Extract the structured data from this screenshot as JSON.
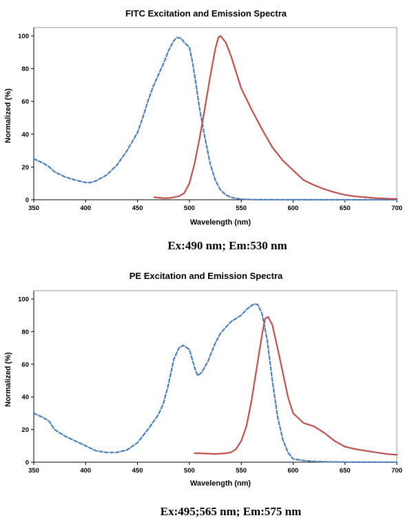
{
  "colors": {
    "excitation": "#4a7ebf",
    "emission": "#c0504d"
  },
  "chart_data": [
    {
      "type": "line",
      "title": "FITC Excitation and Emission Spectra",
      "xlabel": "Wavelength (nm)",
      "ylabel": "Normalized (%)",
      "xlim": [
        350,
        700
      ],
      "ylim": [
        0,
        100
      ],
      "xticks": [
        "350",
        "400",
        "450",
        "500",
        "550",
        "600",
        "650",
        "700"
      ],
      "yticks": [
        "0",
        "20",
        "40",
        "60",
        "80",
        "100"
      ],
      "caption": "Ex:490 nm; Em:530 nm",
      "series": [
        {
          "style": "dashed",
          "color": "#4a7ebf",
          "x": [
            350,
            360,
            365,
            370,
            380,
            390,
            400,
            405,
            410,
            420,
            430,
            440,
            450,
            455,
            460,
            465,
            470,
            475,
            480,
            485,
            488,
            492,
            495,
            500,
            503,
            507,
            510,
            515,
            520,
            525,
            530,
            535,
            540,
            545,
            550,
            560,
            600,
            650,
            700
          ],
          "y": [
            25,
            22,
            20,
            17,
            14,
            12,
            10.5,
            10.5,
            11.5,
            15,
            21,
            30,
            41,
            50,
            60,
            69,
            76,
            83,
            91,
            97,
            99,
            98.5,
            96,
            93,
            84,
            68,
            55,
            38,
            22,
            12,
            6,
            3,
            1.5,
            0.8,
            0.4,
            0.1,
            0,
            0,
            0
          ]
        },
        {
          "style": "solid",
          "color": "#c0504d",
          "x": [
            466,
            475,
            480,
            485,
            490,
            495,
            500,
            505,
            510,
            515,
            520,
            525,
            528,
            530,
            535,
            540,
            545,
            550,
            560,
            570,
            580,
            590,
            600,
            610,
            620,
            630,
            640,
            650,
            660,
            670,
            680,
            690,
            700
          ],
          "y": [
            1.5,
            1,
            1,
            1.5,
            2.2,
            4,
            10,
            22,
            38,
            56,
            75,
            92,
            99,
            100,
            96,
            88,
            78,
            68,
            55,
            43,
            32,
            24,
            18,
            12,
            9,
            6.5,
            4.5,
            3,
            2,
            1.5,
            1,
            0.7,
            0.5
          ]
        }
      ]
    },
    {
      "type": "line",
      "title": "PE Excitation and Emission Spectra",
      "xlabel": "Wavelength (nm)",
      "ylabel": "Normalized (%)",
      "xlim": [
        350,
        700
      ],
      "ylim": [
        0,
        100
      ],
      "xticks": [
        "350",
        "400",
        "450",
        "500",
        "550",
        "600",
        "650",
        "700"
      ],
      "yticks": [
        "0",
        "20",
        "40",
        "60",
        "80",
        "100"
      ],
      "caption": "Ex:495;565 nm; Em:575 nm",
      "series": [
        {
          "style": "dashed",
          "color": "#4a7ebf",
          "x": [
            350,
            360,
            365,
            370,
            380,
            390,
            400,
            410,
            420,
            425,
            430,
            440,
            450,
            460,
            470,
            475,
            480,
            485,
            490,
            494,
            500,
            505,
            508,
            512,
            518,
            525,
            530,
            540,
            550,
            555,
            560,
            563,
            566,
            570,
            575,
            580,
            585,
            590,
            595,
            600,
            610,
            620,
            630,
            650,
            700
          ],
          "y": [
            30,
            27,
            25,
            20,
            16,
            13,
            10,
            7,
            6,
            6,
            6,
            7.5,
            12,
            20,
            29,
            36,
            48,
            63,
            70,
            71.5,
            69,
            58,
            53,
            55,
            62,
            73,
            79,
            86,
            90,
            93.5,
            96,
            97,
            96.5,
            91,
            75,
            50,
            28,
            14,
            6,
            2,
            1,
            0.5,
            0.3,
            0.1,
            0
          ]
        },
        {
          "style": "solid",
          "color": "#c0504d",
          "x": [
            505,
            515,
            525,
            535,
            540,
            545,
            550,
            555,
            560,
            565,
            570,
            573,
            576,
            580,
            585,
            590,
            595,
            600,
            605,
            610,
            620,
            630,
            640,
            650,
            660,
            670,
            680,
            690,
            700
          ],
          "y": [
            5.5,
            5.3,
            5,
            5.5,
            6,
            8,
            13,
            22,
            38,
            58,
            78,
            88,
            89,
            84,
            70,
            55,
            40,
            30,
            27,
            24,
            22,
            18,
            13,
            9.5,
            8,
            7,
            6,
            5,
            4.5
          ]
        }
      ]
    }
  ]
}
